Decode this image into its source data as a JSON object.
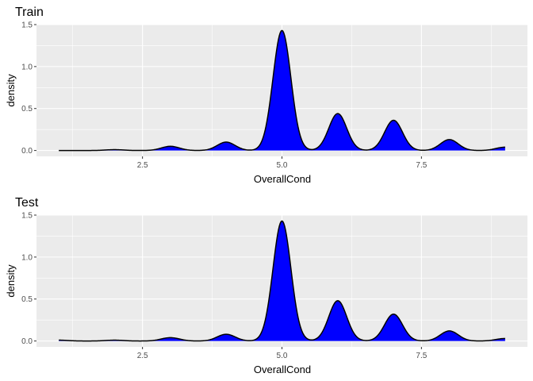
{
  "chart_data": [
    {
      "type": "area",
      "title": "Train",
      "xlabel": "OverallCond",
      "ylabel": "density",
      "xlim": [
        0.6,
        9.4
      ],
      "ylim": [
        -0.07,
        1.5
      ],
      "xticks": [
        2.5,
        5.0,
        7.5
      ],
      "xtick_labels": [
        "2.5",
        "5.0",
        "7.5"
      ],
      "yticks": [
        0.0,
        0.5,
        1.0,
        1.5
      ],
      "ytick_labels": [
        "0.0",
        "0.5",
        "1.0",
        "1.5"
      ],
      "grid": true,
      "fill_color": "#0000ff",
      "line_color": "#000000",
      "series": [
        {
          "x": [
            1.0,
            1.5,
            2.0,
            2.5,
            3.0,
            3.5,
            4.0,
            4.5,
            5.0,
            5.5,
            6.0,
            6.5,
            7.0,
            7.5,
            8.0,
            8.5,
            9.0
          ],
          "values": [
            0.0,
            0.0,
            0.01,
            0.0,
            0.05,
            0.0,
            0.1,
            0.0,
            1.43,
            0.0,
            0.44,
            0.0,
            0.36,
            0.0,
            0.13,
            0.0,
            0.04
          ]
        }
      ]
    },
    {
      "type": "area",
      "title": "Test",
      "xlabel": "OverallCond",
      "ylabel": "density",
      "xlim": [
        0.6,
        9.4
      ],
      "ylim": [
        -0.07,
        1.5
      ],
      "xticks": [
        2.5,
        5.0,
        7.5
      ],
      "xtick_labels": [
        "2.5",
        "5.0",
        "7.5"
      ],
      "yticks": [
        0.0,
        0.5,
        1.0,
        1.5
      ],
      "ytick_labels": [
        "0.0",
        "0.5",
        "1.0",
        "1.5"
      ],
      "grid": true,
      "fill_color": "#0000ff",
      "line_color": "#000000",
      "series": [
        {
          "x": [
            1.0,
            1.5,
            2.0,
            2.5,
            3.0,
            3.5,
            4.0,
            4.5,
            5.0,
            5.5,
            6.0,
            6.5,
            7.0,
            7.5,
            8.0,
            8.5,
            9.0
          ],
          "values": [
            0.01,
            0.0,
            0.01,
            0.0,
            0.04,
            0.0,
            0.08,
            0.0,
            1.43,
            0.0,
            0.48,
            0.0,
            0.32,
            0.0,
            0.12,
            0.0,
            0.03
          ]
        }
      ]
    }
  ]
}
